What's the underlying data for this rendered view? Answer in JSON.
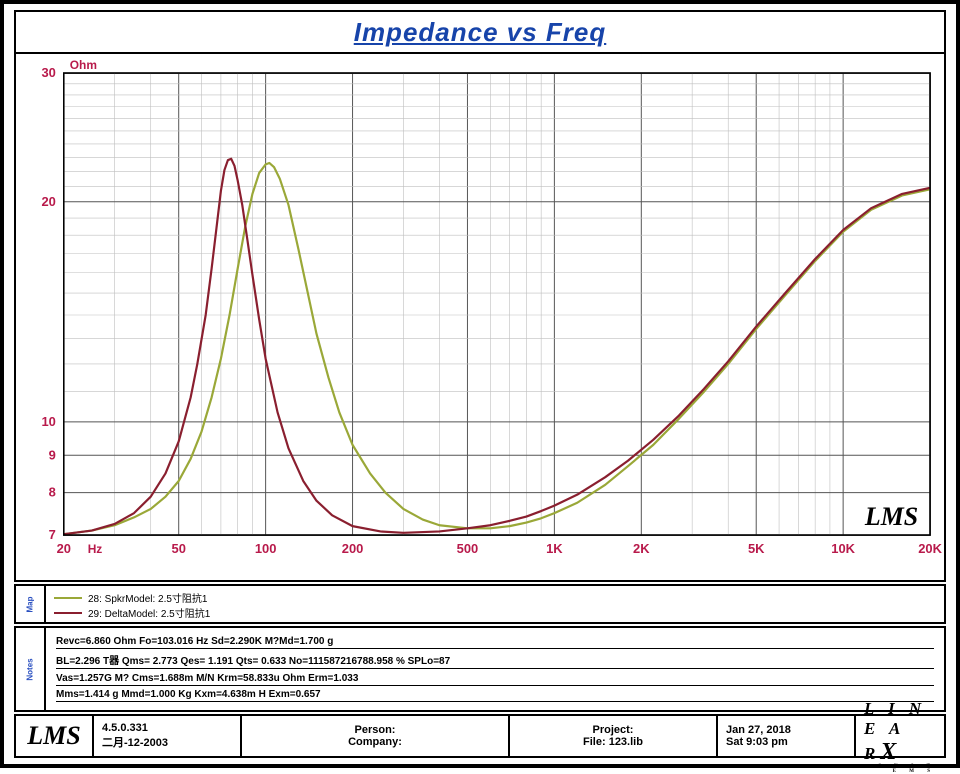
{
  "title": "Impedance vs Freq",
  "chart": {
    "type": "line",
    "x_scale": "log",
    "y_scale": "log",
    "xlim": [
      20,
      20000
    ],
    "ylim": [
      7,
      30
    ],
    "x_unit": "Hz",
    "y_unit": "Ohm",
    "background": "#ffffff",
    "grid_color_major": "#555555",
    "grid_color_minor": "#bfbfbf",
    "axis_label_color": "#b81a4b",
    "title_color": "#1744aa",
    "y_ticks_major": [
      7,
      8,
      9,
      10,
      20,
      30
    ],
    "x_ticks_major": [
      20,
      50,
      100,
      200,
      500,
      1000,
      2000,
      5000,
      10000,
      20000
    ],
    "x_tick_labels": [
      "20",
      "50",
      "100",
      "200",
      "500",
      "1K",
      "2K",
      "5K",
      "10K",
      "20K"
    ],
    "watermark": "LMS",
    "series": [
      {
        "name": "28: SpkrModel: 2.5寸阻抗1",
        "color": "#9aa838",
        "width": 2.2,
        "points": [
          [
            20,
            7.02
          ],
          [
            25,
            7.1
          ],
          [
            30,
            7.22
          ],
          [
            35,
            7.4
          ],
          [
            40,
            7.6
          ],
          [
            45,
            7.9
          ],
          [
            50,
            8.3
          ],
          [
            55,
            8.9
          ],
          [
            60,
            9.7
          ],
          [
            65,
            10.8
          ],
          [
            70,
            12.2
          ],
          [
            75,
            14.0
          ],
          [
            80,
            16.2
          ],
          [
            85,
            18.5
          ],
          [
            90,
            20.5
          ],
          [
            95,
            21.9
          ],
          [
            100,
            22.5
          ],
          [
            103,
            22.6
          ],
          [
            107,
            22.3
          ],
          [
            112,
            21.5
          ],
          [
            120,
            19.8
          ],
          [
            130,
            17.2
          ],
          [
            140,
            15.0
          ],
          [
            150,
            13.2
          ],
          [
            165,
            11.5
          ],
          [
            180,
            10.3
          ],
          [
            200,
            9.3
          ],
          [
            230,
            8.5
          ],
          [
            260,
            8.0
          ],
          [
            300,
            7.6
          ],
          [
            350,
            7.35
          ],
          [
            400,
            7.22
          ],
          [
            500,
            7.15
          ],
          [
            600,
            7.15
          ],
          [
            700,
            7.2
          ],
          [
            800,
            7.28
          ],
          [
            900,
            7.38
          ],
          [
            1000,
            7.5
          ],
          [
            1200,
            7.75
          ],
          [
            1500,
            8.2
          ],
          [
            1800,
            8.7
          ],
          [
            2200,
            9.3
          ],
          [
            2700,
            10.1
          ],
          [
            3300,
            11.0
          ],
          [
            4000,
            12.0
          ],
          [
            5000,
            13.4
          ],
          [
            6300,
            14.9
          ],
          [
            8000,
            16.6
          ],
          [
            10000,
            18.2
          ],
          [
            12500,
            19.5
          ],
          [
            16000,
            20.4
          ],
          [
            20000,
            20.8
          ]
        ]
      },
      {
        "name": "29: DeltaModel: 2.5寸阻抗1",
        "color": "#8a1f2f",
        "width": 2.2,
        "points": [
          [
            20,
            7.02
          ],
          [
            25,
            7.1
          ],
          [
            30,
            7.25
          ],
          [
            35,
            7.5
          ],
          [
            40,
            7.9
          ],
          [
            45,
            8.5
          ],
          [
            50,
            9.4
          ],
          [
            55,
            10.8
          ],
          [
            58,
            12.0
          ],
          [
            62,
            14.0
          ],
          [
            65,
            16.2
          ],
          [
            68,
            18.8
          ],
          [
            70,
            20.7
          ],
          [
            72,
            22.1
          ],
          [
            74,
            22.8
          ],
          [
            76,
            22.9
          ],
          [
            78,
            22.4
          ],
          [
            80,
            21.4
          ],
          [
            83,
            19.8
          ],
          [
            86,
            18.0
          ],
          [
            90,
            15.9
          ],
          [
            95,
            13.8
          ],
          [
            100,
            12.2
          ],
          [
            110,
            10.3
          ],
          [
            120,
            9.2
          ],
          [
            135,
            8.3
          ],
          [
            150,
            7.8
          ],
          [
            170,
            7.45
          ],
          [
            200,
            7.2
          ],
          [
            250,
            7.08
          ],
          [
            300,
            7.05
          ],
          [
            400,
            7.08
          ],
          [
            500,
            7.15
          ],
          [
            600,
            7.22
          ],
          [
            700,
            7.32
          ],
          [
            800,
            7.42
          ],
          [
            900,
            7.55
          ],
          [
            1000,
            7.68
          ],
          [
            1200,
            7.95
          ],
          [
            1500,
            8.4
          ],
          [
            1800,
            8.85
          ],
          [
            2200,
            9.45
          ],
          [
            2700,
            10.2
          ],
          [
            3300,
            11.1
          ],
          [
            4000,
            12.1
          ],
          [
            5000,
            13.5
          ],
          [
            6300,
            15.0
          ],
          [
            8000,
            16.7
          ],
          [
            10000,
            18.3
          ],
          [
            12500,
            19.6
          ],
          [
            16000,
            20.5
          ],
          [
            20000,
            20.9
          ]
        ]
      }
    ]
  },
  "legend": {
    "title": "Map",
    "items": [
      {
        "color": "#9aa838",
        "label": "28: SpkrModel: 2.5寸阻抗1"
      },
      {
        "color": "#8a1f2f",
        "label": "29: DeltaModel: 2.5寸阻抗1"
      }
    ]
  },
  "notes": {
    "title": "Notes",
    "lines": [
      "Revc=6.860 Ohm  Fo=103.016 Hz  Sd=2.290K M?Md=1.700 g",
      "BL=2.296 T器  Qms= 2.773  Qes= 1.191  Qts= 0.633  No=111587216788.958 %  SPLo=87",
      "Vas=1.257G M?  Cms=1.688m M/N  Krm=58.833u Ohm  Erm=1.033",
      "Mms=1.414 g  Mmd=1.000 Kg  Kxm=4.638m H  Exm=0.657"
    ]
  },
  "footer": {
    "version": "4.5.0.331",
    "date1": "二月-12-2003",
    "person_lbl": "Person:",
    "company_lbl": "Company:",
    "project_lbl": "Project:",
    "file_lbl": "File: 123.lib",
    "date2": "Jan 27, 2018",
    "time2": "Sat  9:03 pm",
    "brand": "LINEARX",
    "brand_sub": "S Y S T E M S"
  }
}
